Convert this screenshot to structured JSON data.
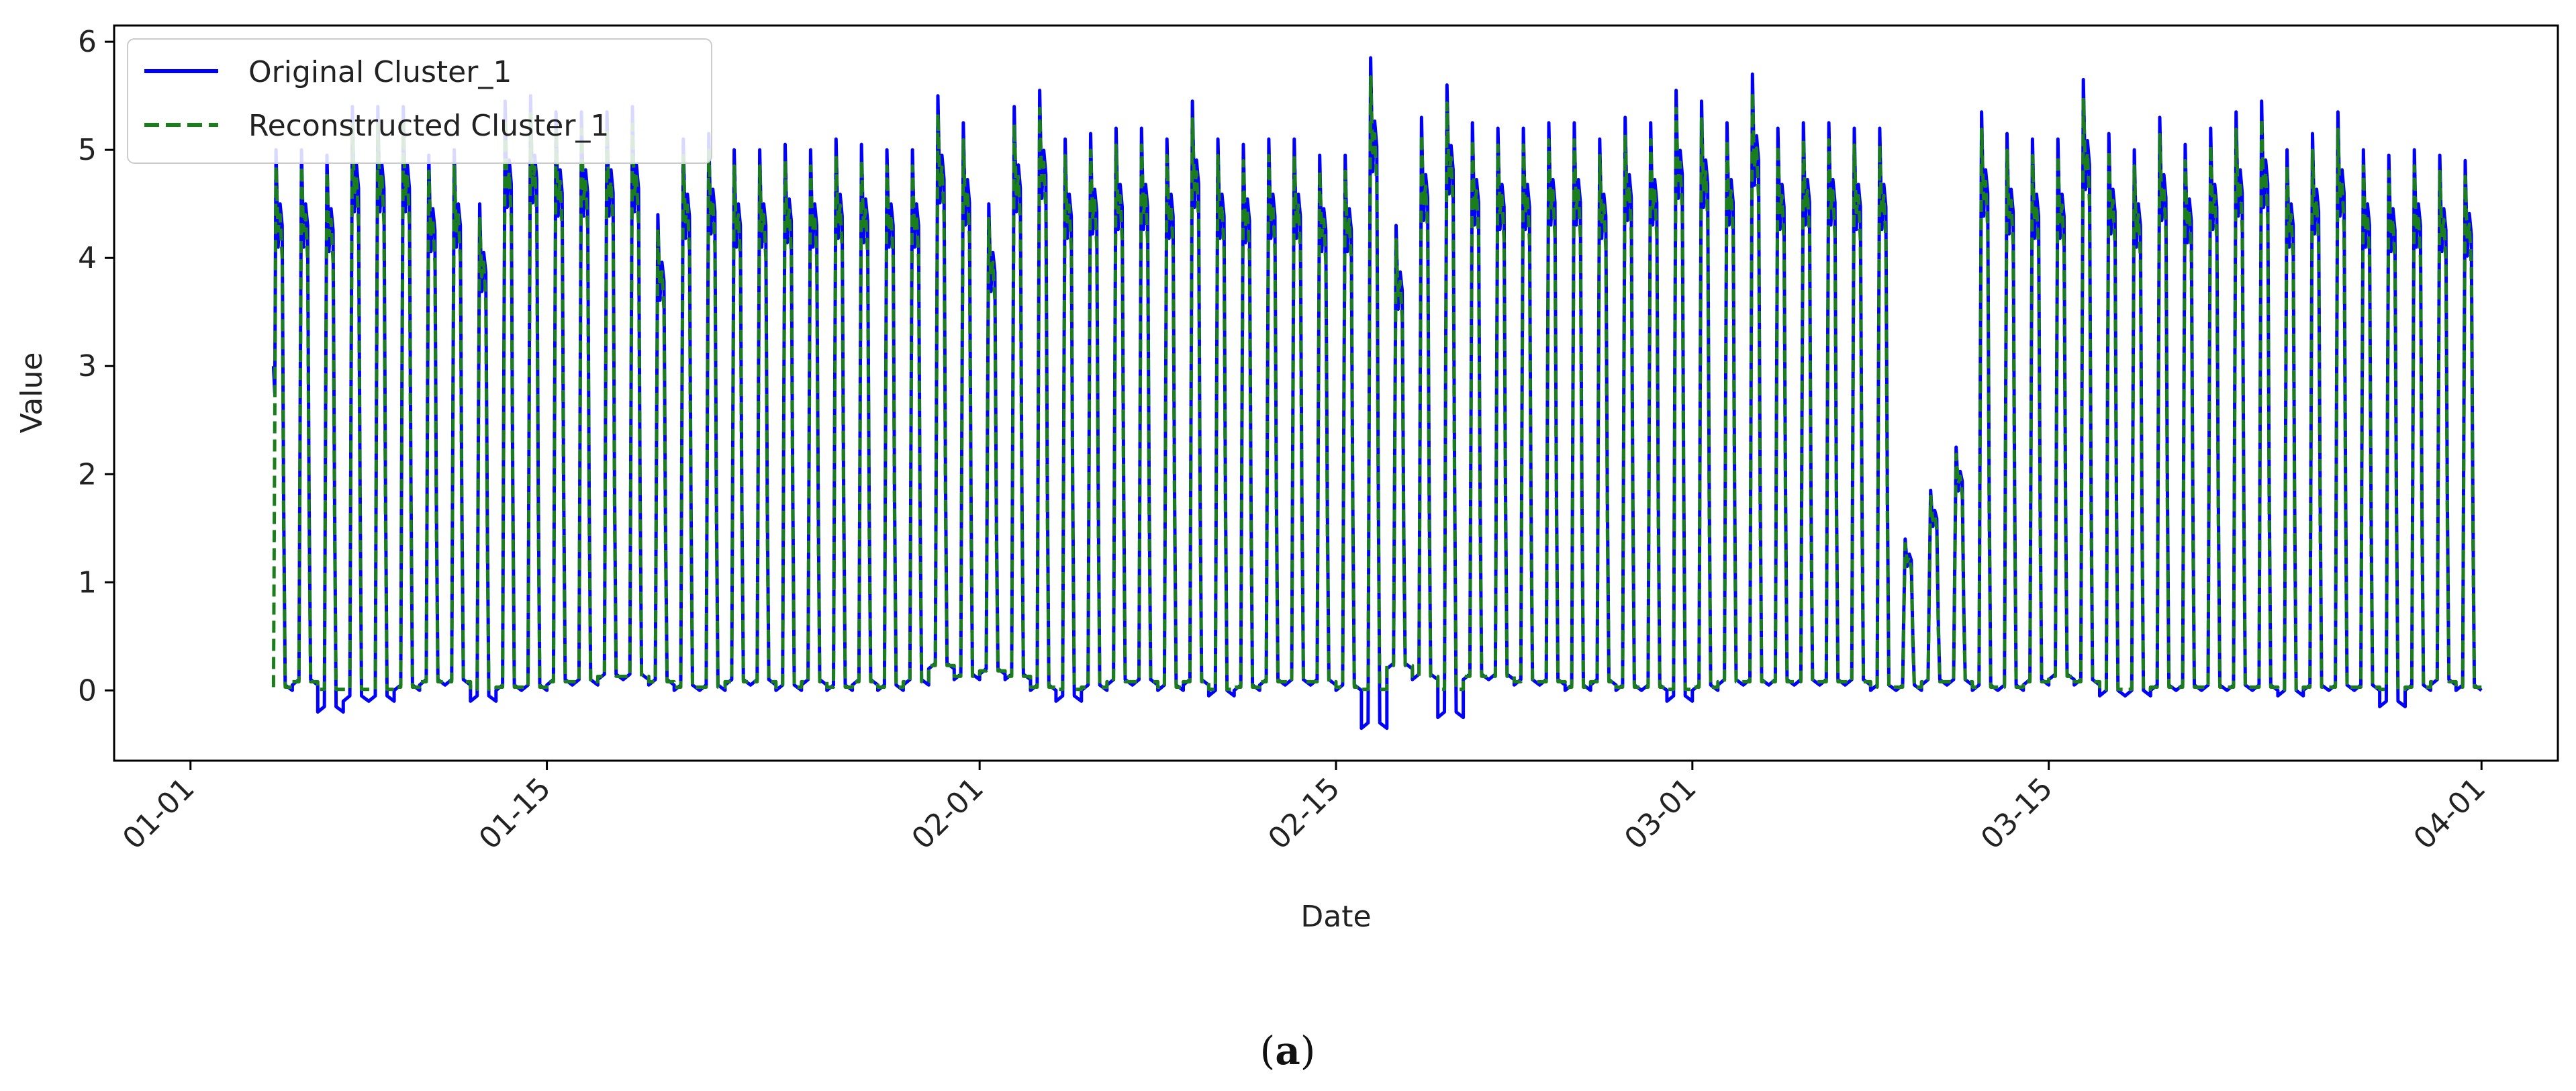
{
  "caption": {
    "prefix": "(",
    "letter": "a",
    "suffix": ")"
  },
  "chart_data": {
    "type": "line",
    "title": "",
    "xlabel": "Date",
    "ylabel": "Value",
    "x_range": [
      "2024-12-29",
      "2025-04-04"
    ],
    "x_ticks": [
      {
        "date": "2025-01-01",
        "label": "01-01"
      },
      {
        "date": "2025-01-15",
        "label": "01-15"
      },
      {
        "date": "2025-02-01",
        "label": "02-01"
      },
      {
        "date": "2025-02-15",
        "label": "02-15"
      },
      {
        "date": "2025-03-01",
        "label": "03-01"
      },
      {
        "date": "2025-03-15",
        "label": "03-15"
      },
      {
        "date": "2025-04-01",
        "label": "04-01"
      }
    ],
    "ylim": [
      -0.65,
      6.15
    ],
    "y_ticks": [
      0,
      1,
      2,
      3,
      4,
      5,
      6
    ],
    "grid": false,
    "legend_position": "top-left",
    "series": [
      {
        "name": "Original Cluster_1",
        "color": "#0000ff",
        "style": "solid"
      },
      {
        "name": "Reconstructed Cluster_1",
        "color": "#1a7f1a",
        "style": "dashed"
      }
    ],
    "data_start": "2025-01-04",
    "data_end": "2025-03-31",
    "daily_cycle": [
      {
        "date": "2025-01-04",
        "peak": 5.0,
        "low": 0.0
      },
      {
        "date": "2025-01-05",
        "peak": 5.0,
        "low": 0.05
      },
      {
        "date": "2025-01-06",
        "peak": 4.95,
        "low": -0.2
      },
      {
        "date": "2025-01-07",
        "peak": 5.4,
        "low": -0.1
      },
      {
        "date": "2025-01-08",
        "peak": 5.4,
        "low": -0.1
      },
      {
        "date": "2025-01-09",
        "peak": 5.4,
        "low": 0.0
      },
      {
        "date": "2025-01-10",
        "peak": 4.95,
        "low": 0.05
      },
      {
        "date": "2025-01-11",
        "peak": 5.0,
        "low": 0.05
      },
      {
        "date": "2025-01-12",
        "peak": 4.5,
        "low": -0.1
      },
      {
        "date": "2025-01-13",
        "peak": 5.45,
        "low": 0.0
      },
      {
        "date": "2025-01-14",
        "peak": 5.5,
        "low": 0.0
      },
      {
        "date": "2025-01-15",
        "peak": 5.35,
        "low": 0.05
      },
      {
        "date": "2025-01-16",
        "peak": 5.35,
        "low": 0.05
      },
      {
        "date": "2025-01-17",
        "peak": 5.35,
        "low": 0.1
      },
      {
        "date": "2025-01-18",
        "peak": 5.4,
        "low": 0.1
      },
      {
        "date": "2025-01-19",
        "peak": 4.4,
        "low": 0.05
      },
      {
        "date": "2025-01-20",
        "peak": 5.1,
        "low": 0.0
      },
      {
        "date": "2025-01-21",
        "peak": 5.15,
        "low": 0.0
      },
      {
        "date": "2025-01-22",
        "peak": 5.0,
        "low": 0.05
      },
      {
        "date": "2025-01-23",
        "peak": 5.0,
        "low": 0.05
      },
      {
        "date": "2025-01-24",
        "peak": 5.05,
        "low": 0.0
      },
      {
        "date": "2025-01-25",
        "peak": 5.0,
        "low": 0.05
      },
      {
        "date": "2025-01-26",
        "peak": 5.1,
        "low": 0.0
      },
      {
        "date": "2025-01-27",
        "peak": 5.05,
        "low": 0.05
      },
      {
        "date": "2025-01-28",
        "peak": 5.0,
        "low": 0.0
      },
      {
        "date": "2025-01-29",
        "peak": 5.0,
        "low": 0.05
      },
      {
        "date": "2025-01-30",
        "peak": 5.5,
        "low": 0.2
      },
      {
        "date": "2025-01-31",
        "peak": 5.25,
        "low": 0.1
      },
      {
        "date": "2025-02-01",
        "peak": 4.5,
        "low": 0.15
      },
      {
        "date": "2025-02-02",
        "peak": 5.4,
        "low": 0.1
      },
      {
        "date": "2025-02-03",
        "peak": 5.55,
        "low": 0.0
      },
      {
        "date": "2025-02-04",
        "peak": 5.1,
        "low": -0.1
      },
      {
        "date": "2025-02-05",
        "peak": 5.15,
        "low": 0.0
      },
      {
        "date": "2025-02-06",
        "peak": 5.2,
        "low": 0.05
      },
      {
        "date": "2025-02-07",
        "peak": 5.2,
        "low": 0.05
      },
      {
        "date": "2025-02-08",
        "peak": 5.1,
        "low": 0.0
      },
      {
        "date": "2025-02-09",
        "peak": 5.45,
        "low": 0.05
      },
      {
        "date": "2025-02-10",
        "peak": 5.1,
        "low": -0.05
      },
      {
        "date": "2025-02-11",
        "peak": 5.05,
        "low": 0.0
      },
      {
        "date": "2025-02-12",
        "peak": 5.1,
        "low": 0.05
      },
      {
        "date": "2025-02-13",
        "peak": 5.1,
        "low": 0.05
      },
      {
        "date": "2025-02-14",
        "peak": 4.95,
        "low": 0.05
      },
      {
        "date": "2025-02-15",
        "peak": 4.95,
        "low": 0.0
      },
      {
        "date": "2025-02-16",
        "peak": 5.85,
        "low": -0.35
      },
      {
        "date": "2025-02-17",
        "peak": 4.3,
        "low": 0.2
      },
      {
        "date": "2025-02-18",
        "peak": 5.3,
        "low": 0.1
      },
      {
        "date": "2025-02-19",
        "peak": 5.6,
        "low": -0.25
      },
      {
        "date": "2025-02-20",
        "peak": 5.25,
        "low": 0.1
      },
      {
        "date": "2025-02-21",
        "peak": 5.2,
        "low": 0.1
      },
      {
        "date": "2025-02-22",
        "peak": 5.2,
        "low": 0.05
      },
      {
        "date": "2025-02-23",
        "peak": 5.25,
        "low": 0.05
      },
      {
        "date": "2025-02-24",
        "peak": 5.25,
        "low": 0.0
      },
      {
        "date": "2025-02-25",
        "peak": 5.1,
        "low": 0.05
      },
      {
        "date": "2025-02-26",
        "peak": 5.3,
        "low": 0.0
      },
      {
        "date": "2025-02-27",
        "peak": 5.25,
        "low": 0.0
      },
      {
        "date": "2025-02-28",
        "peak": 5.55,
        "low": -0.1
      },
      {
        "date": "2025-03-01",
        "peak": 5.45,
        "low": 0.0
      },
      {
        "date": "2025-03-02",
        "peak": 5.25,
        "low": 0.05
      },
      {
        "date": "2025-03-03",
        "peak": 5.7,
        "low": 0.05
      },
      {
        "date": "2025-03-04",
        "peak": 5.2,
        "low": 0.05
      },
      {
        "date": "2025-03-05",
        "peak": 5.25,
        "low": 0.05
      },
      {
        "date": "2025-03-06",
        "peak": 5.25,
        "low": 0.05
      },
      {
        "date": "2025-03-07",
        "peak": 5.2,
        "low": 0.05
      },
      {
        "date": "2025-03-08",
        "peak": 5.2,
        "low": 0.0
      },
      {
        "date": "2025-03-09",
        "peak": 1.4,
        "low": 0.0
      },
      {
        "date": "2025-03-10",
        "peak": 1.85,
        "low": 0.05
      },
      {
        "date": "2025-03-11",
        "peak": 2.25,
        "low": 0.05
      },
      {
        "date": "2025-03-12",
        "peak": 5.35,
        "low": 0.0
      },
      {
        "date": "2025-03-13",
        "peak": 5.15,
        "low": 0.0
      },
      {
        "date": "2025-03-14",
        "peak": 5.1,
        "low": 0.05
      },
      {
        "date": "2025-03-15",
        "peak": 5.1,
        "low": 0.1
      },
      {
        "date": "2025-03-16",
        "peak": 5.65,
        "low": 0.05
      },
      {
        "date": "2025-03-17",
        "peak": 5.15,
        "low": -0.05
      },
      {
        "date": "2025-03-18",
        "peak": 5.0,
        "low": -0.05
      },
      {
        "date": "2025-03-19",
        "peak": 5.3,
        "low": 0.0
      },
      {
        "date": "2025-03-20",
        "peak": 5.05,
        "low": 0.0
      },
      {
        "date": "2025-03-21",
        "peak": 5.2,
        "low": 0.0
      },
      {
        "date": "2025-03-22",
        "peak": 5.35,
        "low": 0.0
      },
      {
        "date": "2025-03-23",
        "peak": 5.45,
        "low": 0.0
      },
      {
        "date": "2025-03-24",
        "peak": 5.0,
        "low": -0.05
      },
      {
        "date": "2025-03-25",
        "peak": 5.15,
        "low": 0.0
      },
      {
        "date": "2025-03-26",
        "peak": 5.35,
        "low": 0.0
      },
      {
        "date": "2025-03-27",
        "peak": 5.0,
        "low": 0.0
      },
      {
        "date": "2025-03-28",
        "peak": 4.95,
        "low": -0.15
      },
      {
        "date": "2025-03-29",
        "peak": 5.0,
        "low": 0.0
      },
      {
        "date": "2025-03-30",
        "peak": 4.95,
        "low": 0.05
      },
      {
        "date": "2025-03-31",
        "peak": 4.9,
        "low": 0.0
      }
    ]
  }
}
